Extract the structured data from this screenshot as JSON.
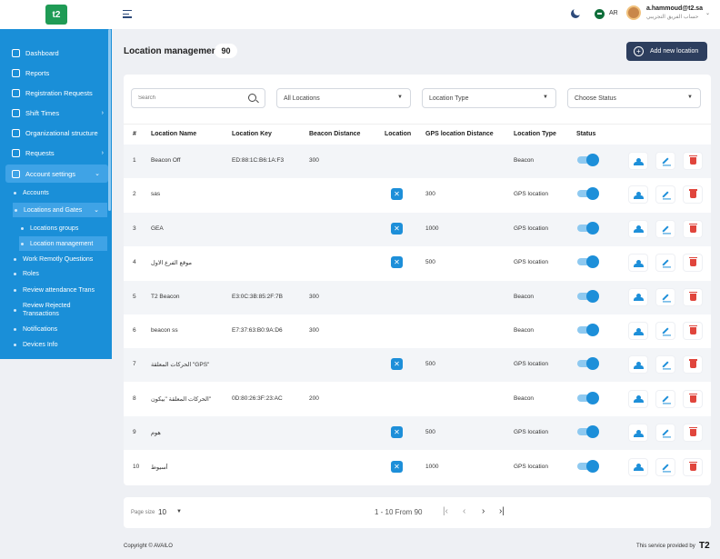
{
  "brand": {
    "logo_text": "t2"
  },
  "sidebar": {
    "items": [
      {
        "label": "Dashboard"
      },
      {
        "label": "Reports"
      },
      {
        "label": "Registration Requests"
      },
      {
        "label": "Shift Times"
      },
      {
        "label": "Organizational structure"
      },
      {
        "label": "Requests"
      },
      {
        "label": "Account settings"
      }
    ],
    "subitems": [
      {
        "label": "Accounts"
      },
      {
        "label": "Locations and Gates"
      },
      {
        "label": "Locations groups"
      },
      {
        "label": "Location management"
      },
      {
        "label": "Work Remotly Questions"
      },
      {
        "label": "Roles"
      },
      {
        "label": "Review attendance Trans"
      },
      {
        "label": "Review Rejected Transactions"
      },
      {
        "label": "Notifications"
      },
      {
        "label": "Devices Info"
      }
    ]
  },
  "topbar": {
    "lang": "AR",
    "user_name": "a.hammoud@t2.sa",
    "user_role": "حساب الفريق التجريبي"
  },
  "header": {
    "title": "Location management",
    "count": "90",
    "add_label": "Add new location"
  },
  "filters": {
    "search_placeholder": "Search",
    "locations": "All Locations",
    "type": "Location Type",
    "status": "Choose Status"
  },
  "table": {
    "headers": [
      "#",
      "Location Name",
      "Location Key",
      "Beacon Distance",
      "Location",
      "GPS location Distance",
      "Location Type",
      "Status"
    ],
    "rows": [
      {
        "n": "1",
        "name": "Beacon Off",
        "key": "ED:88:1C:B6:1A:F3",
        "beacon": "300",
        "gps": "",
        "type": "Beacon",
        "loc_icon": false
      },
      {
        "n": "2",
        "name": "sas",
        "key": "",
        "beacon": "",
        "gps": "300",
        "type": "GPS location",
        "loc_icon": true
      },
      {
        "n": "3",
        "name": "GEA",
        "key": "",
        "beacon": "",
        "gps": "1000",
        "type": "GPS location",
        "loc_icon": true
      },
      {
        "n": "4",
        "name": "موقع الفرع الاول",
        "key": "",
        "beacon": "",
        "gps": "500",
        "type": "GPS location",
        "loc_icon": true
      },
      {
        "n": "5",
        "name": "T2 Beacon",
        "key": "E3:0C:3B:85:2F:7B",
        "beacon": "300",
        "gps": "",
        "type": "Beacon",
        "loc_icon": false
      },
      {
        "n": "6",
        "name": "beacon ss",
        "key": "E7:37:63:B0:9A:D6",
        "beacon": "300",
        "gps": "",
        "type": "Beacon",
        "loc_icon": false
      },
      {
        "n": "7",
        "name": "الحركات المعلقة \"GPS\"",
        "key": "",
        "beacon": "",
        "gps": "500",
        "type": "GPS location",
        "loc_icon": true
      },
      {
        "n": "8",
        "name": "الحركات المعلقة \"بيكون\"",
        "key": "0D:80:26:3F:23:AC",
        "beacon": "200",
        "gps": "",
        "type": "Beacon",
        "loc_icon": false
      },
      {
        "n": "9",
        "name": "هوم",
        "key": "",
        "beacon": "",
        "gps": "500",
        "type": "GPS location",
        "loc_icon": true
      },
      {
        "n": "10",
        "name": "أسيوط",
        "key": "",
        "beacon": "",
        "gps": "1000",
        "type": "GPS location",
        "loc_icon": true
      }
    ]
  },
  "pager": {
    "size_label": "Page size",
    "size": "10",
    "info": "1 - 10 From 90"
  },
  "footer": {
    "copyright": "Copyright © AVAILO",
    "provided": "This service provided by",
    "mark": "T2"
  },
  "colors": {
    "primary": "#1a8fd8",
    "dark_button": "#2d3e5e",
    "delete": "#e0453c"
  }
}
